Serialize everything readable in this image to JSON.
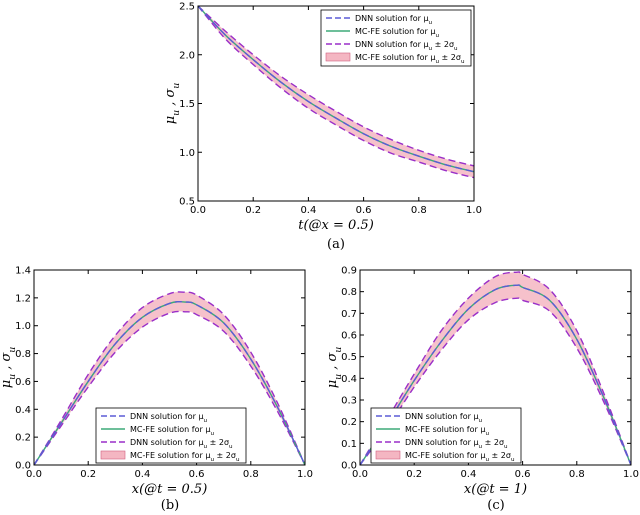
{
  "chart_data": [
    {
      "type": "line",
      "caption": "(a)",
      "xlabel": "t(@x = 0.5)",
      "ylabel": "μu , σu",
      "xlim": [
        0.0,
        1.0
      ],
      "ylim": [
        0.5,
        2.5
      ],
      "xticks": [
        "0.0",
        "0.2",
        "0.4",
        "0.6",
        "0.8",
        "1.0"
      ],
      "yticks": [
        "0.5",
        "1.0",
        "1.5",
        "2.0",
        "2.5"
      ],
      "legend_position": "top-right",
      "legend": [
        {
          "label": "DNN solution for μu",
          "style": "dashed",
          "color": "#5b5bd6"
        },
        {
          "label": "MC-FE solution for μu",
          "style": "solid",
          "color": "#3daa78"
        },
        {
          "label": "DNN solution for μu ± 2σu",
          "style": "dashed",
          "color": "#9a2fc8"
        },
        {
          "label": "MC-FE solution for μu ± 2σu",
          "style": "band",
          "color": "#f4b6c2"
        }
      ],
      "x": [
        0.0,
        0.1,
        0.2,
        0.3,
        0.4,
        0.5,
        0.6,
        0.7,
        0.8,
        0.9,
        1.0
      ],
      "mean": [
        2.5,
        2.2,
        1.95,
        1.72,
        1.52,
        1.35,
        1.19,
        1.06,
        0.96,
        0.87,
        0.8
      ],
      "upper": [
        2.5,
        2.24,
        2.0,
        1.78,
        1.59,
        1.42,
        1.26,
        1.13,
        1.02,
        0.93,
        0.86
      ],
      "lower": [
        2.5,
        2.16,
        1.9,
        1.66,
        1.45,
        1.28,
        1.12,
        0.99,
        0.9,
        0.81,
        0.74
      ]
    },
    {
      "type": "line",
      "caption": "(b)",
      "xlabel": "x(@t = 0.5)",
      "ylabel": "μu , σu",
      "xlim": [
        0.0,
        1.0
      ],
      "ylim": [
        0.0,
        1.4
      ],
      "xticks": [
        "0.0",
        "0.2",
        "0.4",
        "0.6",
        "0.8",
        "1.0"
      ],
      "yticks": [
        "0.0",
        "0.2",
        "0.4",
        "0.6",
        "0.8",
        "1.0",
        "1.2",
        "1.4"
      ],
      "legend_position": "bottom-left",
      "legend": [
        {
          "label": "DNN solution for μu",
          "style": "dashed",
          "color": "#5b5bd6"
        },
        {
          "label": "MC-FE solution for μu",
          "style": "solid",
          "color": "#3daa78"
        },
        {
          "label": "DNN solution for μu ± 2σu",
          "style": "dashed",
          "color": "#9a2fc8"
        },
        {
          "label": "MC-FE solution for μu ± 2σu",
          "style": "band",
          "color": "#f4b6c2"
        }
      ],
      "x": [
        0.0,
        0.1,
        0.2,
        0.3,
        0.4,
        0.5,
        0.56,
        0.6,
        0.7,
        0.8,
        0.9,
        1.0
      ],
      "mean": [
        0.0,
        0.3,
        0.6,
        0.87,
        1.06,
        1.16,
        1.17,
        1.15,
        1.02,
        0.76,
        0.41,
        0.0
      ],
      "upper": [
        0.0,
        0.32,
        0.65,
        0.93,
        1.13,
        1.23,
        1.24,
        1.22,
        1.08,
        0.81,
        0.44,
        0.0
      ],
      "lower": [
        0.0,
        0.28,
        0.56,
        0.81,
        0.99,
        1.09,
        1.1,
        1.08,
        0.96,
        0.71,
        0.38,
        0.0
      ]
    },
    {
      "type": "line",
      "caption": "(c)",
      "xlabel": "x(@t = 1)",
      "ylabel": "μu , σu",
      "xlim": [
        0.0,
        1.0
      ],
      "ylim": [
        0.0,
        0.9
      ],
      "xticks": [
        "0.0",
        "0.2",
        "0.4",
        "0.6",
        "0.8",
        "1.0"
      ],
      "yticks": [
        "0.0",
        "0.1",
        "0.2",
        "0.3",
        "0.4",
        "0.5",
        "0.6",
        "0.7",
        "0.8",
        "0.9"
      ],
      "legend_position": "bottom-left",
      "legend": [
        {
          "label": "DNN solution for μu",
          "style": "dashed",
          "color": "#5b5bd6"
        },
        {
          "label": "MC-FE solution for μu",
          "style": "solid",
          "color": "#3daa78"
        },
        {
          "label": "DNN solution for μu ± 2σu",
          "style": "dashed",
          "color": "#9a2fc8"
        },
        {
          "label": "MC-FE solution for μu ± 2σu",
          "style": "band",
          "color": "#f4b6c2"
        }
      ],
      "x": [
        0.0,
        0.1,
        0.2,
        0.3,
        0.4,
        0.5,
        0.58,
        0.6,
        0.7,
        0.8,
        0.9,
        1.0
      ],
      "mean": [
        0.0,
        0.19,
        0.39,
        0.57,
        0.72,
        0.81,
        0.83,
        0.82,
        0.76,
        0.58,
        0.31,
        0.0
      ],
      "upper": [
        0.0,
        0.21,
        0.42,
        0.62,
        0.77,
        0.87,
        0.89,
        0.88,
        0.81,
        0.62,
        0.33,
        0.0
      ],
      "lower": [
        0.0,
        0.17,
        0.36,
        0.53,
        0.67,
        0.75,
        0.77,
        0.76,
        0.71,
        0.54,
        0.29,
        0.0
      ]
    }
  ]
}
